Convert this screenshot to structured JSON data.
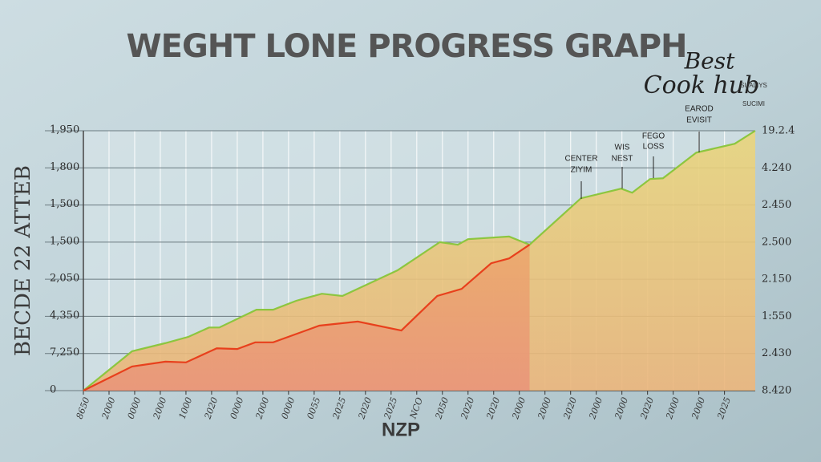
{
  "chart_data": {
    "type": "line",
    "title": "WEGHT LONE PROGRESS GRAPH",
    "x_label": "NZP",
    "y_label": "BECDE 22  ATTEB",
    "logo": {
      "line1": "Best",
      "line2": "Cook hub",
      "line3": "SUALIYS",
      "line4": "SUCIMI"
    },
    "annotations": [
      [
        "CENTER",
        "ZIYIM"
      ],
      [
        "WIS",
        "NEST"
      ],
      [
        "FEGO",
        "LOSS"
      ],
      [
        "EAROD",
        "EVISIT"
      ]
    ],
    "xlim": [
      0,
      26.2
    ],
    "xticks": [
      {
        "value": 0,
        "label": "8650"
      },
      {
        "value": 1,
        "label": "2000"
      },
      {
        "value": 2,
        "label": "0000"
      },
      {
        "value": 3,
        "label": "2000"
      },
      {
        "value": 4,
        "label": "1000"
      },
      {
        "value": 5,
        "label": "2020"
      },
      {
        "value": 6,
        "label": "0000"
      },
      {
        "value": 7,
        "label": "2000"
      },
      {
        "value": 8,
        "label": "0000"
      },
      {
        "value": 9,
        "label": "0055"
      },
      {
        "value": 10,
        "label": "2025"
      },
      {
        "value": 11,
        "label": "2020"
      },
      {
        "value": 12,
        "label": "2025"
      },
      {
        "value": 13,
        "label": "NCO"
      },
      {
        "value": 14,
        "label": "2050"
      },
      {
        "value": 15,
        "label": "2020"
      },
      {
        "value": 16,
        "label": "2020"
      },
      {
        "value": 17,
        "label": "2000"
      },
      {
        "value": 18,
        "label": "2000"
      },
      {
        "value": 19,
        "label": "2020"
      },
      {
        "value": 20,
        "label": "2000"
      },
      {
        "value": 21,
        "label": "2000"
      },
      {
        "value": 22,
        "label": "2020"
      },
      {
        "value": 23,
        "label": "2000"
      },
      {
        "value": 24,
        "label": "2000"
      },
      {
        "value": 25,
        "label": "2025"
      }
    ],
    "ylim": [
      0,
      7
    ],
    "yticks": [
      {
        "value": 0,
        "label": "0"
      },
      {
        "value": 1,
        "label": "7,250"
      },
      {
        "value": 2,
        "label": "4,350"
      },
      {
        "value": 3,
        "label": "2,050"
      },
      {
        "value": 4,
        "label": "1,500"
      },
      {
        "value": 5,
        "label": "1,500"
      },
      {
        "value": 6,
        "label": "1,800"
      },
      {
        "value": 7,
        "label": "1,950"
      }
    ],
    "y2lim": [
      0,
      7
    ],
    "y2ticks": [
      {
        "value": 0,
        "label": "8.420"
      },
      {
        "value": 1,
        "label": "2.430"
      },
      {
        "value": 2,
        "label": "1:550"
      },
      {
        "value": 3,
        "label": "2.150"
      },
      {
        "value": 4,
        "label": "2.500"
      },
      {
        "value": 5,
        "label": "2.450"
      },
      {
        "value": 6,
        "label": "4.240"
      },
      {
        "value": 7,
        "label": "19.2.4"
      }
    ],
    "grid": true,
    "series": [
      {
        "color": "#8cc63f",
        "x": [
          0,
          1.9,
          3.2,
          4.1,
          4.9,
          5.3,
          6.75,
          7.4,
          8.3,
          9.3,
          10.1,
          11.1,
          12.25,
          13.9,
          14.6,
          15.0,
          16.6,
          17.4,
          19.4,
          20.97,
          21.4,
          22.1,
          22.6,
          23.9,
          25.4,
          26.2
        ],
        "values": [
          0,
          1.06,
          1.28,
          1.45,
          1.7,
          1.7,
          2.18,
          2.18,
          2.42,
          2.61,
          2.55,
          2.87,
          3.24,
          4.0,
          3.93,
          4.08,
          4.15,
          3.93,
          5.18,
          5.44,
          5.33,
          5.7,
          5.72,
          6.41,
          6.65,
          7.0
        ]
      },
      {
        "color": "#e8401c",
        "x": [
          0,
          1.9,
          3.2,
          4.0,
          5.2,
          6.0,
          6.7,
          7.4,
          9.2,
          10.7,
          12.4,
          13.8,
          14.75,
          15.9,
          16.6,
          17.4
        ],
        "values": [
          0,
          0.65,
          0.78,
          0.76,
          1.14,
          1.12,
          1.3,
          1.3,
          1.75,
          1.86,
          1.62,
          2.55,
          2.74,
          3.43,
          3.56,
          3.93
        ]
      }
    ]
  }
}
